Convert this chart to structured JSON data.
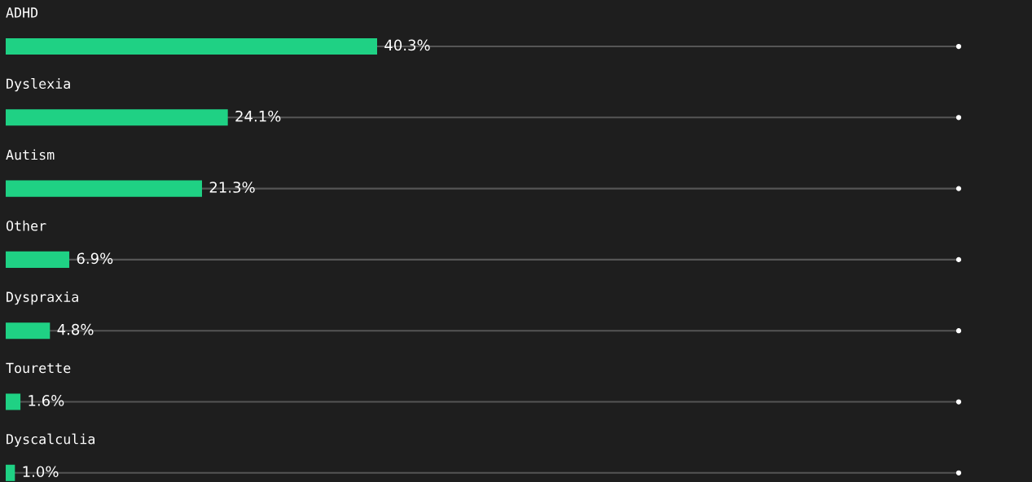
{
  "chart_data": {
    "type": "bar",
    "orientation": "horizontal",
    "categories": [
      "ADHD",
      "Dyslexia",
      "Autism",
      "Other",
      "Dyspraxia",
      "Tourette",
      "Dyscalculia"
    ],
    "values": [
      40.3,
      24.1,
      21.3,
      6.9,
      4.8,
      1.6,
      1.0
    ],
    "value_labels": [
      "40.3%",
      "24.1%",
      "21.3%",
      "6.9%",
      "4.8%",
      "1.6%",
      "1.0%"
    ],
    "color": "#1fd184",
    "grid": false,
    "legend": false
  }
}
